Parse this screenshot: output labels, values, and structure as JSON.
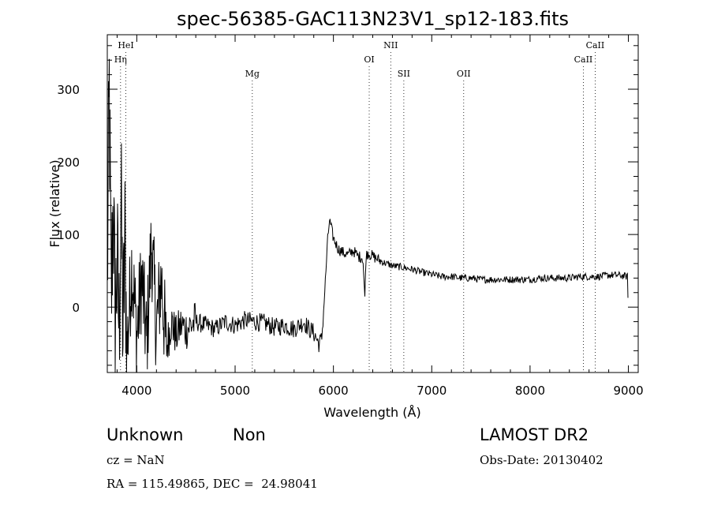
{
  "info": {
    "obj_class": "Unknown",
    "obj_subclass": "Non",
    "survey": "LAMOST DR2",
    "cz": "cz = NaN",
    "obs_date": "Obs-Date: 20130402",
    "ra_dec": "RA = 115.49865, DEC =  24.98041"
  },
  "chart_data": {
    "type": "line",
    "title": "spec-56385-GAC113N23V1_sp12-183.fits",
    "xlabel": "Wavelength (Å)",
    "ylabel": "Flux (relative)",
    "xlim": [
      3700,
      9100
    ],
    "ylim": [
      -90,
      375
    ],
    "xticks": [
      4000,
      5000,
      6000,
      7000,
      8000,
      9000
    ],
    "yticks": [
      0,
      100,
      200,
      300
    ],
    "spectral_lines": [
      {
        "name": "Hη",
        "wavelength": 3835,
        "row": 2
      },
      {
        "name": "HeI",
        "wavelength": 3889,
        "row": 1
      },
      {
        "name": "Mg",
        "wavelength": 5175,
        "row": 3
      },
      {
        "name": "OI",
        "wavelength": 6364,
        "row": 2
      },
      {
        "name": "NII",
        "wavelength": 6583,
        "row": 1
      },
      {
        "name": "SII",
        "wavelength": 6716,
        "row": 3
      },
      {
        "name": "OII",
        "wavelength": 7325,
        "row": 3
      },
      {
        "name": "CaII",
        "wavelength": 8542,
        "row": 2
      },
      {
        "name": "CaII",
        "wavelength": 8662,
        "row": 1
      }
    ],
    "series": [
      {
        "x": [
          3700,
          3720,
          3740,
          3760,
          3780,
          3800,
          3820,
          3840,
          3860,
          3880,
          3900,
          3950,
          4000,
          4050,
          4100,
          4150,
          4200,
          4250,
          4300,
          4350,
          4400,
          4450,
          4500,
          4600,
          4700,
          4800,
          4900,
          5000,
          5100,
          5200,
          5300,
          5400,
          5500,
          5600,
          5700,
          5750,
          5800,
          5850,
          5880,
          5900,
          5920,
          5940,
          5960,
          6000,
          6050,
          6100,
          6150,
          6200,
          6250,
          6300,
          6320,
          6330,
          6350,
          6400,
          6500,
          6600,
          6700,
          6800,
          6900,
          7000,
          7100,
          7200,
          7300,
          7400,
          7500,
          7600,
          7700,
          7800,
          7900,
          8000,
          8100,
          8200,
          8300,
          8400,
          8500,
          8600,
          8700,
          8800,
          8900,
          8990,
          9000
        ],
        "y": [
          30,
          300,
          0,
          150,
          -20,
          60,
          -30,
          150,
          -40,
          90,
          -60,
          60,
          -40,
          40,
          -50,
          90,
          -30,
          40,
          -60,
          -20,
          -40,
          -25,
          -30,
          -20,
          -25,
          -30,
          -20,
          -25,
          -18,
          -20,
          -22,
          -28,
          -25,
          -30,
          -20,
          -30,
          -35,
          -50,
          -45,
          -5,
          40,
          90,
          120,
          95,
          80,
          75,
          72,
          78,
          70,
          68,
          10,
          70,
          75,
          70,
          62,
          57,
          55,
          52,
          48,
          45,
          42,
          42,
          40,
          40,
          38,
          38,
          38,
          38,
          38,
          38,
          40,
          40,
          40,
          40,
          42,
          42,
          42,
          44,
          44,
          42,
          0
        ]
      }
    ]
  }
}
